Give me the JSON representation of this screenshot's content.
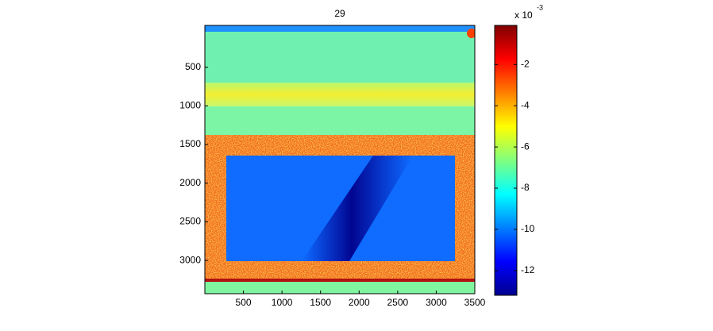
{
  "chart_data": {
    "type": "heatmap",
    "title": "29",
    "xlim": [
      0,
      3500
    ],
    "xticks": [
      500,
      1000,
      1500,
      2000,
      2500,
      3000,
      3500
    ],
    "ylim": [
      0,
      3430
    ],
    "yticks": [
      500,
      1000,
      1500,
      2000,
      2500,
      3000
    ],
    "colormap": "jet",
    "colorbar": {
      "clim": [
        -13.2,
        -0.1
      ],
      "ticks": [
        -12,
        -10,
        -8,
        -6,
        -4,
        -2
      ],
      "label": "x 10",
      "exponent": "-3"
    }
  }
}
